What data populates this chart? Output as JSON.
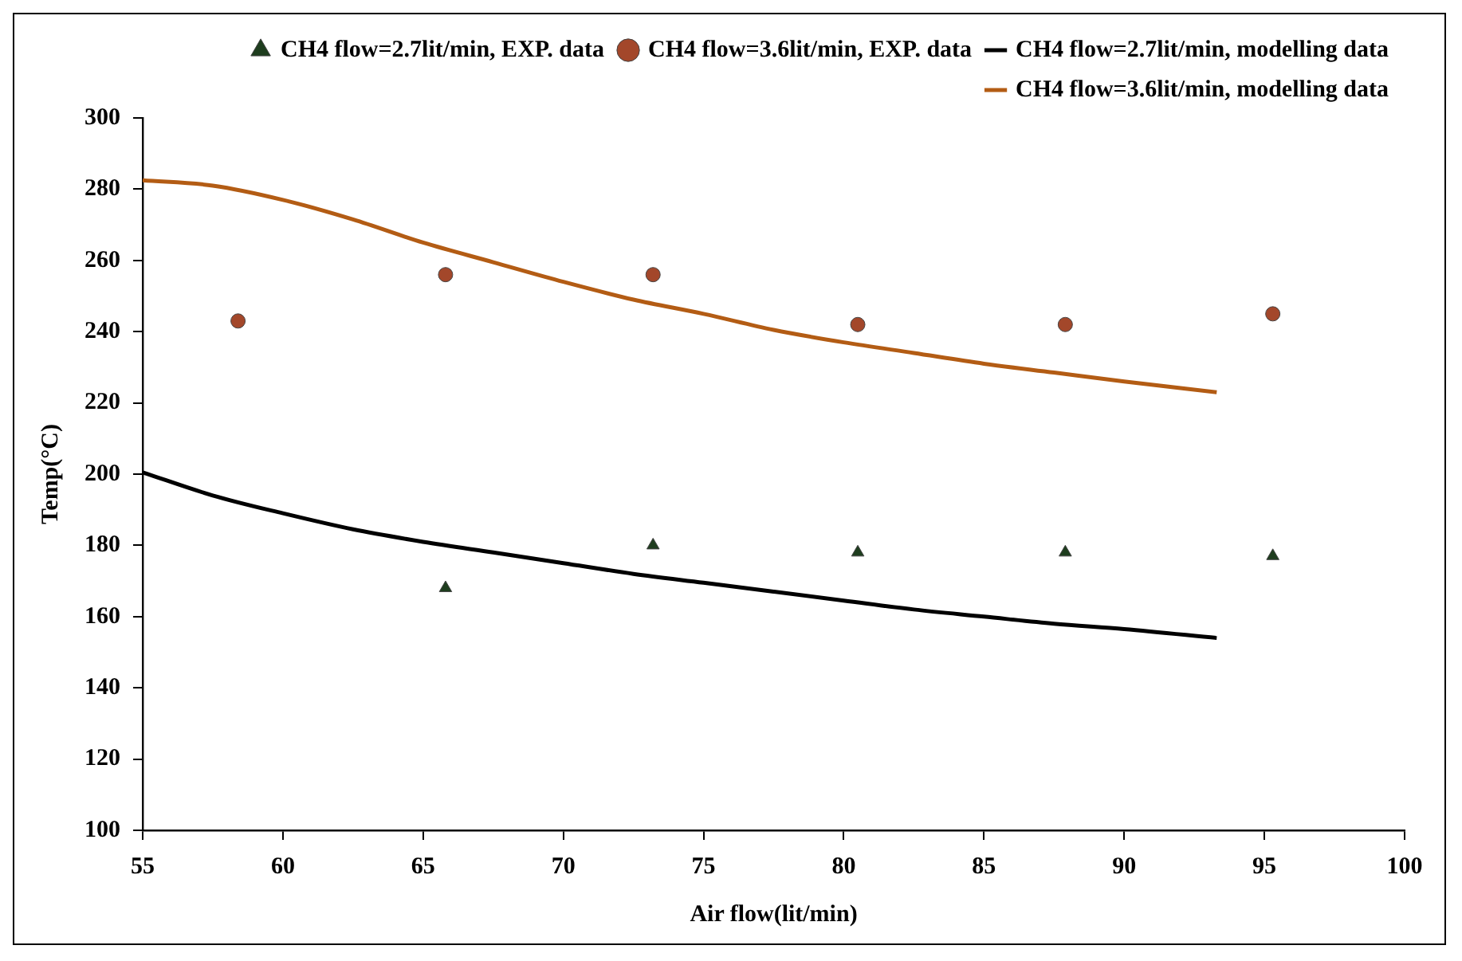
{
  "chart_data": {
    "type": "scatter",
    "xlabel": "Air flow(lit/min)",
    "ylabel": "Temp(°C)",
    "xlim": [
      55,
      100
    ],
    "xticks": [
      55,
      60,
      65,
      70,
      75,
      80,
      85,
      90,
      95,
      100
    ],
    "ylim": [
      100,
      300
    ],
    "yticks": [
      100,
      120,
      140,
      160,
      180,
      200,
      220,
      240,
      260,
      280,
      300
    ],
    "grid": false,
    "legend": "top right",
    "series": [
      {
        "name": "CH4 flow=2.7lit/min, EXP. data",
        "type": "scatter",
        "marker": "triangle",
        "color": "#1e3d1e",
        "x": [
          65.8,
          73.2,
          80.5,
          87.9,
          95.3
        ],
        "values": [
          168,
          180,
          178,
          178,
          177
        ]
      },
      {
        "name": "CH4 flow=3.6lit/min, EXP. data",
        "type": "scatter",
        "marker": "circle",
        "color": "#a3472a",
        "x": [
          58.4,
          65.8,
          73.2,
          80.5,
          87.9,
          95.3
        ],
        "values": [
          243,
          256,
          256,
          242,
          242,
          245
        ]
      },
      {
        "name": "CH4 flow=2.7lit/min, modelling data",
        "type": "line",
        "marker": "none",
        "line_style": "solid",
        "color": "#000000",
        "x": [
          55,
          57.5,
          60,
          62.5,
          65,
          67.5,
          70,
          72.5,
          75,
          77.5,
          80,
          82.5,
          85,
          87.5,
          90,
          93.3
        ],
        "values": [
          200.5,
          194,
          189,
          184.5,
          181,
          178,
          175,
          172,
          169.5,
          167,
          164.5,
          162,
          160,
          158,
          156.5,
          154
        ]
      },
      {
        "name": "CH4 flow=3.6lit/min, modelling data",
        "type": "line",
        "marker": "none",
        "line_style": "solid",
        "color": "#b35c14",
        "x": [
          55,
          57.5,
          60,
          62.5,
          65,
          67.5,
          70,
          72.5,
          75,
          77.5,
          80,
          82.5,
          85,
          87.5,
          90,
          93.3
        ],
        "values": [
          282.5,
          281,
          277,
          271.5,
          265,
          259.5,
          254,
          249,
          245,
          240.5,
          237,
          234,
          231,
          228.5,
          226,
          223
        ]
      }
    ]
  }
}
